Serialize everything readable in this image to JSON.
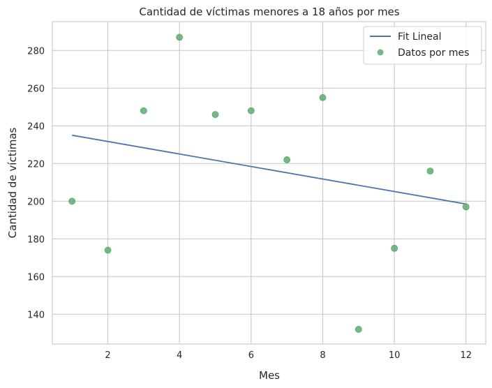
{
  "chart_data": {
    "type": "scatter",
    "title": "Cantidad de víctimas menores a 18 años por mes",
    "xlabel": "Mes",
    "ylabel": "Cantidad de víctimas",
    "xlim": [
      0.45,
      12.55
    ],
    "ylim": [
      124.2,
      295.3
    ],
    "xticks": [
      2,
      4,
      6,
      8,
      10,
      12
    ],
    "yticks": [
      140,
      160,
      180,
      200,
      220,
      240,
      260,
      280
    ],
    "grid": true,
    "legend_position": "top-right",
    "series": [
      {
        "name": "Fit Lineal",
        "kind": "line",
        "color": "#4c72b0",
        "x": [
          1,
          12
        ],
        "y": [
          235,
          198.5
        ]
      },
      {
        "name": "Datos por mes",
        "kind": "scatter",
        "color": "#55a868",
        "x": [
          1,
          2,
          3,
          4,
          5,
          6,
          7,
          8,
          9,
          10,
          11,
          12
        ],
        "y": [
          200,
          174,
          248,
          287,
          246,
          248,
          222,
          255,
          132,
          175,
          216,
          197
        ]
      }
    ]
  }
}
